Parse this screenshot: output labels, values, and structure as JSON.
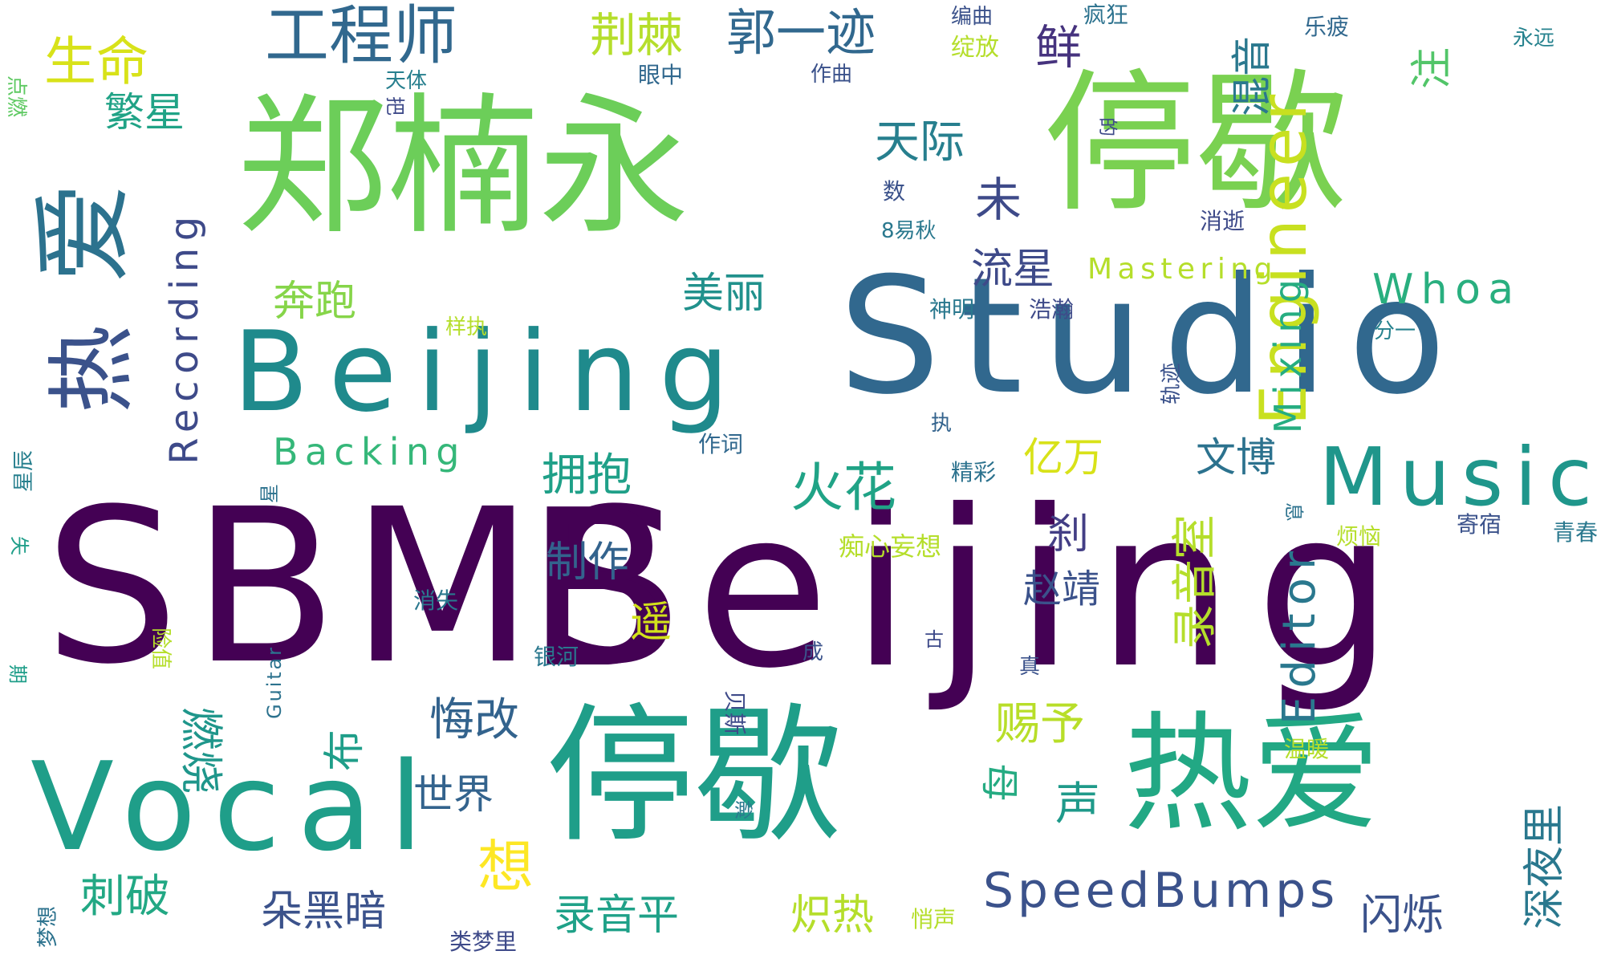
{
  "palette": {
    "dark_purple": "#440154",
    "indigo": "#3b528b",
    "blue": "#2c728e",
    "teal": "#21918c",
    "green": "#27ad81",
    "light_green": "#5ec962",
    "lime": "#aadc32",
    "yellow": "#fde725"
  },
  "words": [
    {
      "id": "sbms",
      "text": "SBMS",
      "color": "#440154"
    },
    {
      "id": "beijing_big",
      "text": "Beijing",
      "color": "#440154"
    },
    {
      "id": "studio",
      "text": "Studio",
      "color": "#31688e"
    },
    {
      "id": "beijing_mid",
      "text": "Beijing",
      "color": "#1f8a8c"
    },
    {
      "id": "zhengnanyong",
      "text": "郑楠永",
      "color": "#6cce59"
    },
    {
      "id": "tingxie_top",
      "text": "停歇",
      "color": "#7ad151"
    },
    {
      "id": "tingxie_bottom",
      "text": "停歇",
      "color": "#1f9e89"
    },
    {
      "id": "reai_bottom",
      "text": "热爱",
      "color": "#22a884"
    },
    {
      "id": "vocal",
      "text": "Vocal",
      "color": "#1f9e89"
    },
    {
      "id": "music",
      "text": "Music",
      "color": "#1f968b"
    },
    {
      "id": "engineer",
      "text": "Engineer",
      "color": "#c8e020"
    },
    {
      "id": "editor",
      "text": "Editor",
      "color": "#2a788e"
    },
    {
      "id": "speedbumps",
      "text": "SpeedBumps",
      "color": "#3b528b"
    },
    {
      "id": "recording",
      "text": "Recording",
      "color": "#3e4a89"
    },
    {
      "id": "backing",
      "text": "Backing",
      "color": "#35b779"
    },
    {
      "id": "mastering",
      "text": "Mastering",
      "color": "#b5de2b"
    },
    {
      "id": "mixing",
      "text": "Mixing",
      "color": "#26ad81"
    },
    {
      "id": "whoa",
      "text": "Whoa",
      "color": "#29af7f"
    },
    {
      "id": "ai_left",
      "text": "爱",
      "color": "#2c728e"
    },
    {
      "id": "re_left",
      "text": "热",
      "color": "#3b528b"
    },
    {
      "id": "gongchengshi",
      "text": "工程师",
      "color": "#31688e"
    },
    {
      "id": "shengming",
      "text": "生命",
      "color": "#d8e219"
    },
    {
      "id": "jingji",
      "text": "荆棘",
      "color": "#b5de2b"
    },
    {
      "id": "guoyiji",
      "text": "郭一迹",
      "color": "#31688e"
    },
    {
      "id": "fanxing",
      "text": "繁星",
      "color": "#20a386"
    },
    {
      "id": "tianji",
      "text": "天际",
      "color": "#277f8e"
    },
    {
      "id": "wei",
      "text": "未",
      "color": "#3e4a89"
    },
    {
      "id": "liuxing",
      "text": "流星",
      "color": "#3e4a89"
    },
    {
      "id": "xian",
      "text": "鲜",
      "color": "#46337e"
    },
    {
      "id": "hunyin",
      "text": "混音",
      "color": "#2a788e"
    },
    {
      "id": "zhu",
      "text": "注",
      "color": "#52c569"
    },
    {
      "id": "benpao",
      "text": "奔跑",
      "color": "#86d549"
    },
    {
      "id": "meili",
      "text": "美丽",
      "color": "#21918c"
    },
    {
      "id": "huohua",
      "text": "火花",
      "color": "#20a386"
    },
    {
      "id": "yiwan",
      "text": "亿万",
      "color": "#d8e219"
    },
    {
      "id": "wenbo",
      "text": "文博",
      "color": "#2c728e"
    },
    {
      "id": "yongbao",
      "text": "拥抱",
      "color": "#1fa088"
    },
    {
      "id": "zhizuo",
      "text": "制作",
      "color": "#33638d"
    },
    {
      "id": "sha",
      "text": "刹",
      "color": "#433e85"
    },
    {
      "id": "zhaojing",
      "text": "赵靖",
      "color": "#3b528b"
    },
    {
      "id": "luyinshi",
      "text": "录音室",
      "color": "#b5de2b"
    },
    {
      "id": "yao",
      "text": "遥",
      "color": "#d2e21b"
    },
    {
      "id": "huigai",
      "text": "悔改",
      "color": "#33638d"
    },
    {
      "id": "bu",
      "text": "布",
      "color": "#1f9e89"
    },
    {
      "id": "ranshao",
      "text": "燃烧",
      "color": "#1f968b"
    },
    {
      "id": "ciyu",
      "text": "赐予",
      "color": "#b8de29"
    },
    {
      "id": "shijie",
      "text": "世界",
      "color": "#33638d"
    },
    {
      "id": "xiang",
      "text": "想",
      "color": "#fde725"
    },
    {
      "id": "mu",
      "text": "母",
      "color": "#25ab82"
    },
    {
      "id": "sheng",
      "text": "声",
      "color": "#1f9a8a"
    },
    {
      "id": "shenyeli",
      "text": "深夜里",
      "color": "#2a788e"
    },
    {
      "id": "cipo",
      "text": "刺破",
      "color": "#22a884"
    },
    {
      "id": "duoheian",
      "text": "朵黑暗",
      "color": "#3b528b"
    },
    {
      "id": "luyinping",
      "text": "录音平",
      "color": "#1fa188"
    },
    {
      "id": "zhire",
      "text": "炽热",
      "color": "#b5de2b"
    },
    {
      "id": "shanshuo",
      "text": "闪烁",
      "color": "#3b528b"
    },
    {
      "id": "dianran",
      "text": "点燃",
      "color": "#5ec962"
    },
    {
      "id": "tianti",
      "text": "天体",
      "color": "#277f8e"
    },
    {
      "id": "ba",
      "text": "把",
      "color": "#3e4a89"
    },
    {
      "id": "zuoqu",
      "text": "作曲",
      "color": "#3b528b"
    },
    {
      "id": "yanzhong",
      "text": "眼中",
      "color": "#31688e"
    },
    {
      "id": "bianqu",
      "text": "编曲",
      "color": "#3b528b"
    },
    {
      "id": "zhanfang",
      "text": "绽放",
      "color": "#b5de2b"
    },
    {
      "id": "fengkuang",
      "text": "疯狂",
      "color": "#2c728e"
    },
    {
      "id": "lepi",
      "text": "乐疲",
      "color": "#31688e"
    },
    {
      "id": "yongyuan",
      "text": "永远",
      "color": "#26828e"
    },
    {
      "id": "de",
      "text": "的",
      "color": "#3e4a89"
    },
    {
      "id": "shu",
      "text": "数",
      "color": "#3b528b"
    },
    {
      "id": "byiqiu",
      "text": "8易秋",
      "color": "#2a788e"
    },
    {
      "id": "xiaoshi_r",
      "text": "消逝",
      "color": "#3e4a89"
    },
    {
      "id": "shenming",
      "text": "神明",
      "color": "#2a788e"
    },
    {
      "id": "haohan",
      "text": "浩瀚",
      "color": "#3e4a89"
    },
    {
      "id": "yangzhi",
      "text": "样执",
      "color": "#b5de2b"
    },
    {
      "id": "fenyi",
      "text": "分一",
      "color": "#26828e"
    },
    {
      "id": "guiji",
      "text": "轨迹",
      "color": "#3b528b"
    },
    {
      "id": "zhi",
      "text": "执",
      "color": "#33638d"
    },
    {
      "id": "zuoci",
      "text": "作词",
      "color": "#31688e"
    },
    {
      "id": "xingchen",
      "text": "星辰",
      "color": "#277f8e"
    },
    {
      "id": "xing",
      "text": "星",
      "color": "#2c728e"
    },
    {
      "id": "jingcai",
      "text": "精彩",
      "color": "#2c728e"
    },
    {
      "id": "xi",
      "text": "息",
      "color": "#2c728e"
    },
    {
      "id": "fannao",
      "text": "烦恼",
      "color": "#b5de2b"
    },
    {
      "id": "jisu",
      "text": "寄宿",
      "color": "#3b528b"
    },
    {
      "id": "qingchun",
      "text": "青春",
      "color": "#2a788e"
    },
    {
      "id": "shi",
      "text": "失",
      "color": "#1f9e89"
    },
    {
      "id": "chixin",
      "text": "痴心妄想",
      "color": "#b5de2b"
    },
    {
      "id": "xiaoshi_l",
      "text": "消失",
      "color": "#2a788e"
    },
    {
      "id": "xianzhi",
      "text": "险值",
      "color": "#b5de2b"
    },
    {
      "id": "guitar",
      "text": "Guitar",
      "color": "#2c728e"
    },
    {
      "id": "yinhe",
      "text": "银河",
      "color": "#2a788e"
    },
    {
      "id": "cheng",
      "text": "成",
      "color": "#3b528b"
    },
    {
      "id": "gu",
      "text": "古",
      "color": "#3e4a89"
    },
    {
      "id": "zhen",
      "text": "真",
      "color": "#3b528b"
    },
    {
      "id": "qi",
      "text": "期",
      "color": "#1f9e89"
    },
    {
      "id": "beisi",
      "text": "贝斯",
      "color": "#3e4a89"
    },
    {
      "id": "wennuan",
      "text": "温暖",
      "color": "#b5de2b"
    },
    {
      "id": "miao",
      "text": "渺",
      "color": "#2a788e"
    },
    {
      "id": "qiaosheng",
      "text": "悄声",
      "color": "#b5de2b"
    },
    {
      "id": "mengxiang",
      "text": "梦想",
      "color": "#2c728e"
    },
    {
      "id": "leimengli",
      "text": "类梦里",
      "color": "#3e4a89"
    }
  ]
}
